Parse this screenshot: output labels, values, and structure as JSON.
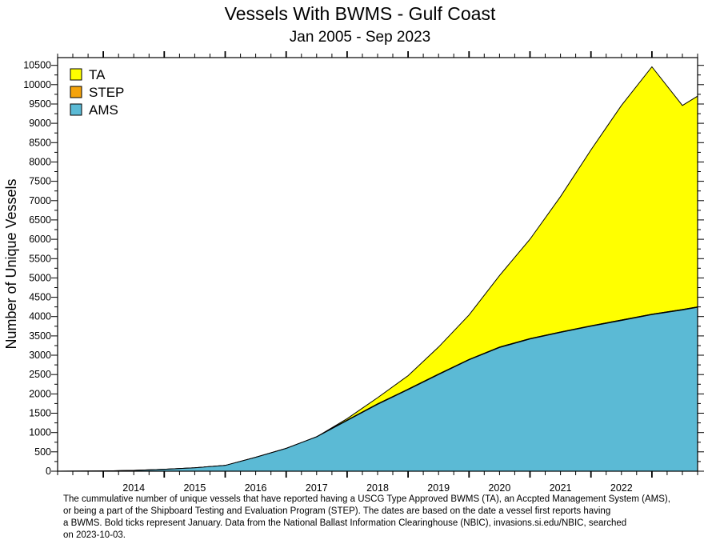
{
  "chart_data": {
    "type": "area",
    "stacked": true,
    "title": "Vessels With BWMS -  Gulf Coast",
    "subtitle": "Jan 2005 -  Sep 2023",
    "ylabel": "Number of Unique Vessels",
    "xlabel": "",
    "ylim": [
      0,
      10700
    ],
    "xlim": [
      "2013-04",
      "2023-10"
    ],
    "legend_position": "top-left",
    "x_ticks": [
      "2014",
      "2015",
      "2016",
      "2017",
      "2018",
      "2019",
      "2020",
      "2021",
      "2022"
    ],
    "y_ticks": [
      0,
      500,
      1000,
      1500,
      2000,
      2500,
      3000,
      3500,
      4000,
      4500,
      5000,
      5500,
      6000,
      6500,
      7000,
      7500,
      8000,
      8500,
      9000,
      9500,
      10000,
      10500
    ],
    "x": [
      "2013-04",
      "2014-01",
      "2014-07",
      "2015-01",
      "2015-07",
      "2016-01",
      "2016-07",
      "2017-01",
      "2017-07",
      "2018-01",
      "2018-07",
      "2019-01",
      "2019-07",
      "2020-01",
      "2020-07",
      "2021-01",
      "2021-07",
      "2022-01",
      "2022-07",
      "2023-01",
      "2023-07",
      "2023-10"
    ],
    "series": [
      {
        "name": "AMS",
        "color": "#5bbad5",
        "values": [
          0,
          5,
          20,
          50,
          90,
          150,
          360,
          590,
          890,
          1310,
          1730,
          2110,
          2500,
          2880,
          3200,
          3420,
          3590,
          3750,
          3900,
          4050,
          4170,
          4240
        ]
      },
      {
        "name": "STEP",
        "color": "#f4a30c",
        "values": [
          0,
          0,
          0,
          0,
          0,
          0,
          0,
          0,
          0,
          10,
          12,
          12,
          12,
          12,
          12,
          12,
          12,
          12,
          12,
          12,
          12,
          12
        ]
      },
      {
        "name": "TA",
        "color": "#ffff00",
        "values": [
          0,
          0,
          0,
          0,
          0,
          0,
          0,
          0,
          0,
          40,
          160,
          350,
          700,
          1150,
          1850,
          2570,
          3500,
          4550,
          5550,
          6400,
          5280,
          5450
        ]
      }
    ],
    "caption_lines": [
      "The cummulative number of unique vessels that have reported having a USCG Type Approved BWMS (TA), an Accpted Management System (AMS),",
      "or being a part of the Shipboard Testing and Evaluation Program (STEP). The dates are based on the date a vessel first reports having",
      "a BWMS. Bold ticks represent January. Data from the National Ballast Information Clearinghouse (NBIC), invasions.si.edu/NBIC, searched",
      "on 2023-10-03."
    ]
  }
}
